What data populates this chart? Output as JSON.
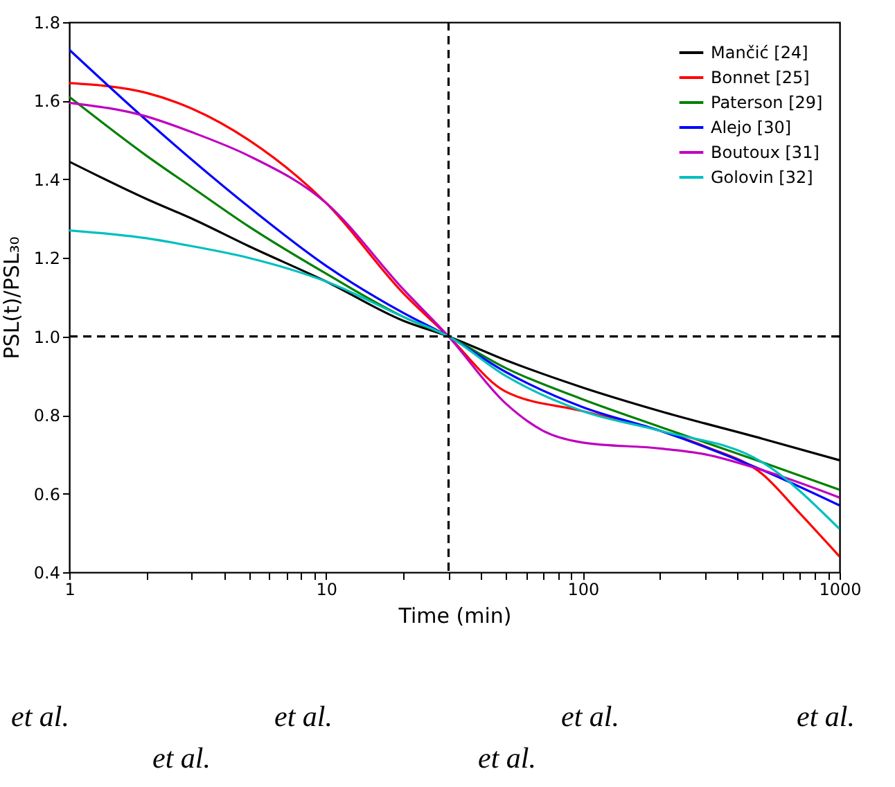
{
  "chart_data": {
    "type": "line",
    "xlabel": "Time (min)",
    "ylabel": "PSL(t)/PSL₃₀",
    "log": "x",
    "grid": false,
    "legend": "top right",
    "line_style": "solid",
    "marker": "none",
    "xlim": [
      1,
      1000
    ],
    "xticks": [
      1,
      {
        "value": 2,
        "label": null
      },
      {
        "value": 3,
        "label": null
      },
      {
        "value": 4,
        "label": null
      },
      {
        "value": 5,
        "label": null
      },
      {
        "value": 6,
        "label": null
      },
      {
        "value": 7,
        "label": null
      },
      {
        "value": 8,
        "label": null
      },
      {
        "value": 9,
        "label": null
      },
      10,
      {
        "value": 20,
        "label": null
      },
      {
        "value": 30,
        "label": null
      },
      {
        "value": 40,
        "label": null
      },
      {
        "value": 50,
        "label": null
      },
      {
        "value": 60,
        "label": null
      },
      {
        "value": 70,
        "label": null
      },
      {
        "value": 80,
        "label": null
      },
      {
        "value": 90,
        "label": null
      },
      100,
      {
        "value": 200,
        "label": null
      },
      {
        "value": 300,
        "label": null
      },
      {
        "value": 400,
        "label": null
      },
      {
        "value": 500,
        "label": null
      },
      {
        "value": 600,
        "label": null
      },
      {
        "value": 700,
        "label": null
      },
      {
        "value": 800,
        "label": null
      },
      {
        "value": 900,
        "label": null
      },
      1000
    ],
    "ylim": [
      0.4,
      1.8
    ],
    "yticks": [
      0.4,
      0.6,
      0.8,
      {
        "value": 1,
        "label": "1.0"
      },
      1.2,
      1.4,
      1.6,
      1.8
    ],
    "series": [
      {
        "name": "Mančić [24]",
        "color": "#000000",
        "x": [
          1,
          2,
          3,
          5,
          10,
          20,
          30,
          50,
          100,
          200,
          500,
          1000
        ],
        "values": [
          1.445,
          1.35,
          1.3,
          1.23,
          1.14,
          1.04,
          1.0,
          0.94,
          0.87,
          0.81,
          0.74,
          0.685
        ]
      },
      {
        "name": "Bonnet [25]",
        "color": "#ff0000",
        "x": [
          1,
          2,
          3,
          5,
          10,
          20,
          30,
          50,
          100,
          200,
          300,
          500,
          700,
          1000
        ],
        "values": [
          1.645,
          1.62,
          1.58,
          1.5,
          1.34,
          1.11,
          1.0,
          0.86,
          0.81,
          0.76,
          0.72,
          0.65,
          0.55,
          0.44
        ]
      },
      {
        "name": "Paterson [29]",
        "color": "#008000",
        "x": [
          1,
          2,
          3,
          5,
          10,
          20,
          30,
          50,
          100,
          200,
          500,
          1000
        ],
        "values": [
          1.61,
          1.46,
          1.38,
          1.28,
          1.16,
          1.05,
          1.0,
          0.92,
          0.84,
          0.77,
          0.68,
          0.61
        ]
      },
      {
        "name": "Alejo [30]",
        "color": "#0000ff",
        "x": [
          1,
          2,
          3,
          5,
          10,
          20,
          30,
          50,
          100,
          200,
          500,
          1000
        ],
        "values": [
          1.73,
          1.55,
          1.45,
          1.33,
          1.18,
          1.06,
          1.0,
          0.91,
          0.82,
          0.76,
          0.66,
          0.57
        ]
      },
      {
        "name": "Boutoux [31]",
        "color": "#bf00bf",
        "x": [
          1,
          2,
          3,
          5,
          10,
          20,
          30,
          50,
          70,
          100,
          200,
          300,
          500,
          1000
        ],
        "values": [
          1.595,
          1.56,
          1.52,
          1.46,
          1.34,
          1.12,
          1.0,
          0.83,
          0.76,
          0.73,
          0.715,
          0.7,
          0.66,
          0.59
        ]
      },
      {
        "name": "Golovin [32]",
        "color": "#00bfbf",
        "x": [
          1,
          2,
          3,
          5,
          10,
          20,
          30,
          50,
          100,
          200,
          500,
          1000
        ],
        "values": [
          1.27,
          1.25,
          1.23,
          1.2,
          1.14,
          1.05,
          1.0,
          0.9,
          0.81,
          0.76,
          0.68,
          0.51
        ]
      }
    ],
    "ref_lines": [
      {
        "axis": "x",
        "value": 30,
        "color": "#000000",
        "line_style": "dashed"
      },
      {
        "axis": "y",
        "value": 1,
        "color": "#000000",
        "line_style": "dashed"
      }
    ],
    "annotations": [
      "et al.",
      "et al.",
      "et al.",
      "et al.",
      "et al.",
      "et al."
    ]
  }
}
